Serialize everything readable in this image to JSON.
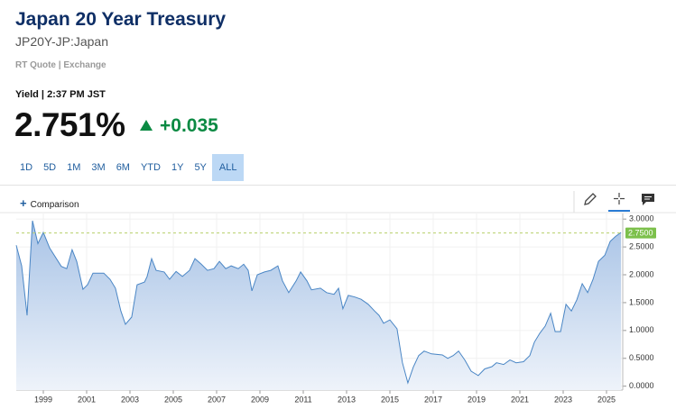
{
  "header": {
    "title": "Japan 20 Year Treasury",
    "symbol": "JP20Y-JP:Japan",
    "quote_source": "RT Quote | Exchange",
    "yield_label": "Yield | 2:37 PM JST",
    "price": "2.751%",
    "change": "+0.035"
  },
  "range_buttons": [
    "1D",
    "5D",
    "1M",
    "3M",
    "6M",
    "YTD",
    "1Y",
    "5Y",
    "ALL"
  ],
  "selected_range": "ALL",
  "toolbar": {
    "comparison": "Comparison"
  },
  "chart_data": {
    "type": "area",
    "color": "#4a86c5",
    "x": [
      1997.75,
      1998.0,
      1998.25,
      1998.5,
      1998.75,
      1999.0,
      1999.29,
      1999.83,
      2000.08,
      2000.33,
      2000.54,
      2000.83,
      2001.04,
      2001.29,
      2001.79,
      2002.08,
      2002.33,
      2002.58,
      2002.79,
      2003.08,
      2003.33,
      2003.67,
      2003.79,
      2004.0,
      2004.21,
      2004.58,
      2004.83,
      2005.13,
      2005.42,
      2005.75,
      2006.0,
      2006.29,
      2006.58,
      2006.88,
      2007.13,
      2007.42,
      2007.67,
      2008.0,
      2008.25,
      2008.46,
      2008.63,
      2008.88,
      2009.21,
      2009.5,
      2009.83,
      2010.04,
      2010.33,
      2010.67,
      2010.88,
      2011.17,
      2011.38,
      2011.79,
      2012.08,
      2012.42,
      2012.63,
      2012.83,
      2013.08,
      2013.38,
      2013.67,
      2014.0,
      2014.29,
      2014.5,
      2014.71,
      2015.0,
      2015.33,
      2015.58,
      2015.83,
      2016.08,
      2016.33,
      2016.58,
      2016.92,
      2017.42,
      2017.67,
      2017.92,
      2018.17,
      2018.46,
      2018.75,
      2019.08,
      2019.38,
      2019.71,
      2019.92,
      2020.25,
      2020.54,
      2020.83,
      2021.17,
      2021.46,
      2021.67,
      2021.92,
      2022.17,
      2022.42,
      2022.63,
      2022.88,
      2023.13,
      2023.38,
      2023.63,
      2023.88,
      2024.13,
      2024.38,
      2024.63,
      2024.92,
      2025.17,
      2025.42,
      2025.67
    ],
    "values": [
      2.53,
      2.16,
      1.27,
      2.97,
      2.56,
      2.76,
      2.48,
      2.15,
      2.11,
      2.45,
      2.24,
      1.74,
      1.82,
      2.03,
      2.03,
      1.92,
      1.76,
      1.35,
      1.11,
      1.24,
      1.82,
      1.87,
      1.97,
      2.29,
      2.08,
      2.05,
      1.92,
      2.06,
      1.97,
      2.08,
      2.29,
      2.19,
      2.08,
      2.11,
      2.24,
      2.11,
      2.16,
      2.11,
      2.19,
      2.08,
      1.71,
      2.0,
      2.05,
      2.08,
      2.16,
      1.89,
      1.68,
      1.89,
      2.05,
      1.89,
      1.73,
      1.76,
      1.68,
      1.65,
      1.76,
      1.39,
      1.63,
      1.6,
      1.56,
      1.47,
      1.35,
      1.27,
      1.13,
      1.19,
      1.03,
      0.42,
      0.06,
      0.34,
      0.55,
      0.63,
      0.58,
      0.56,
      0.5,
      0.55,
      0.63,
      0.47,
      0.27,
      0.19,
      0.31,
      0.35,
      0.42,
      0.39,
      0.47,
      0.42,
      0.44,
      0.55,
      0.79,
      0.95,
      1.08,
      1.31,
      0.98,
      0.98,
      1.47,
      1.35,
      1.55,
      1.84,
      1.68,
      1.92,
      2.24,
      2.35,
      2.6,
      2.69,
      2.76
    ],
    "xlim": [
      1997.75,
      2025.75
    ],
    "xticks": [
      1999,
      2001,
      2003,
      2005,
      2007,
      2009,
      2011,
      2013,
      2015,
      2017,
      2019,
      2021,
      2023,
      2025
    ],
    "ylim": [
      -0.07,
      3.1
    ],
    "yticks": [
      {
        "value": 0,
        "label": "0.0000"
      },
      {
        "value": 0.5,
        "label": "0.5000"
      },
      {
        "value": 1,
        "label": "1.0000"
      },
      {
        "value": 1.5,
        "label": "1.5000"
      },
      {
        "value": 2,
        "label": "2.0000"
      },
      {
        "value": 2.5,
        "label": "2.5000"
      },
      {
        "value": 3,
        "label": "3.0000"
      }
    ],
    "reference_line": {
      "value": 2.75,
      "label": "2.7500"
    },
    "grid": true
  }
}
